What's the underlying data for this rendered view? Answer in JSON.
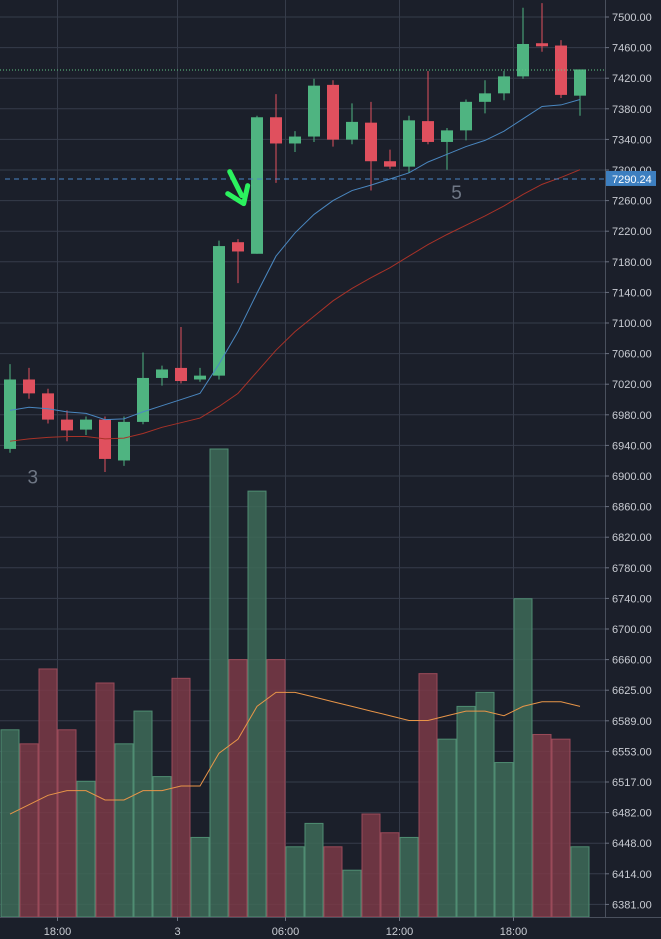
{
  "colors": {
    "background": "#1b1f2a",
    "grid": "#363c4a",
    "up": "#4fb481",
    "down": "#e0505e",
    "volume_up": "#3d6b58",
    "volume_down": "#7a3a47",
    "ema_fast": "#4a87c0",
    "ema_slow": "#a83228",
    "volume_ma": "#e89548",
    "current_price_line": "#62c987",
    "marker_line": "#4a86c5",
    "price_tag": "#3d7fc0",
    "arrow": "#2bf25e"
  },
  "chart_data": {
    "type": "candlestick",
    "y_axis_ticks": [
      "7500.00",
      "7460.00",
      "7420.00",
      "7380.00",
      "7340.00",
      "7300.00",
      "7260.00",
      "7220.00",
      "7180.00",
      "7140.00",
      "7100.00",
      "7060.00",
      "7020.00",
      "6980.00",
      "6940.00",
      "6900.00",
      "6860.00",
      "6820.00",
      "6780.00",
      "6740.00",
      "6700.00",
      "6660.00",
      "6625.00",
      "6589.00",
      "6553.00",
      "6517.00",
      "6482.00",
      "6448.00",
      "6414.00",
      "6381.00"
    ],
    "price_range": [
      6904,
      7515
    ],
    "x_ticks": [
      {
        "label": "18:00",
        "at_candle": 3
      },
      {
        "label": "3",
        "at_candle": 9
      },
      {
        "label": "06:00",
        "at_candle": 15
      },
      {
        "label": "12:00",
        "at_candle": 21
      },
      {
        "label": "18:00",
        "at_candle": 27
      }
    ],
    "candles": [
      {
        "o": 6940,
        "h": 7050,
        "l": 6935,
        "c": 7030
      },
      {
        "o": 7030,
        "h": 7045,
        "l": 7005,
        "c": 7012
      },
      {
        "o": 7012,
        "h": 7018,
        "l": 6973,
        "c": 6978
      },
      {
        "o": 6978,
        "h": 6990,
        "l": 6950,
        "c": 6964
      },
      {
        "o": 6965,
        "h": 6982,
        "l": 6958,
        "c": 6978
      },
      {
        "o": 6978,
        "h": 6982,
        "l": 6910,
        "c": 6927
      },
      {
        "o": 6925,
        "h": 6982,
        "l": 6918,
        "c": 6975
      },
      {
        "o": 6975,
        "h": 7065,
        "l": 6972,
        "c": 7032
      },
      {
        "o": 7032,
        "h": 7048,
        "l": 7022,
        "c": 7043
      },
      {
        "o": 7045,
        "h": 7098,
        "l": 7025,
        "c": 7028
      },
      {
        "o": 7030,
        "h": 7045,
        "l": 7027,
        "c": 7035
      },
      {
        "o": 7035,
        "h": 7210,
        "l": 7030,
        "c": 7203
      },
      {
        "o": 7208,
        "h": 7212,
        "l": 7155,
        "c": 7196
      },
      {
        "o": 7193,
        "h": 7372,
        "l": 7193,
        "c": 7370
      },
      {
        "o": 7370,
        "h": 7400,
        "l": 7285,
        "c": 7336
      },
      {
        "o": 7336,
        "h": 7352,
        "l": 7325,
        "c": 7345
      },
      {
        "o": 7345,
        "h": 7420,
        "l": 7338,
        "c": 7411
      },
      {
        "o": 7412,
        "h": 7418,
        "l": 7332,
        "c": 7341
      },
      {
        "o": 7341,
        "h": 7388,
        "l": 7335,
        "c": 7364
      },
      {
        "o": 7363,
        "h": 7390,
        "l": 7275,
        "c": 7313
      },
      {
        "o": 7313,
        "h": 7328,
        "l": 7303,
        "c": 7306
      },
      {
        "o": 7306,
        "h": 7372,
        "l": 7298,
        "c": 7366
      },
      {
        "o": 7365,
        "h": 7430,
        "l": 7335,
        "c": 7338
      },
      {
        "o": 7338,
        "h": 7356,
        "l": 7302,
        "c": 7353
      },
      {
        "o": 7353,
        "h": 7393,
        "l": 7340,
        "c": 7390
      },
      {
        "o": 7390,
        "h": 7418,
        "l": 7375,
        "c": 7401
      },
      {
        "o": 7401,
        "h": 7430,
        "l": 7392,
        "c": 7423
      },
      {
        "o": 7423,
        "h": 7512,
        "l": 7420,
        "c": 7465
      },
      {
        "o": 7466,
        "h": 7518,
        "l": 7455,
        "c": 7462
      },
      {
        "o": 7463,
        "h": 7470,
        "l": 7395,
        "c": 7399
      },
      {
        "o": 7398,
        "h": 7432,
        "l": 7372,
        "c": 7432
      }
    ],
    "volume": [
      0.4,
      0.37,
      0.53,
      0.4,
      0.29,
      0.5,
      0.37,
      0.44,
      0.3,
      0.51,
      0.17,
      1.0,
      0.55,
      0.91,
      0.55,
      0.15,
      0.2,
      0.15,
      0.1,
      0.22,
      0.18,
      0.17,
      0.52,
      0.38,
      0.45,
      0.48,
      0.33,
      0.68,
      0.39,
      0.38,
      0.15
    ],
    "volume_ma": [
      0.22,
      0.24,
      0.26,
      0.27,
      0.27,
      0.25,
      0.25,
      0.27,
      0.27,
      0.28,
      0.28,
      0.35,
      0.38,
      0.45,
      0.48,
      0.48,
      0.47,
      0.46,
      0.45,
      0.44,
      0.43,
      0.42,
      0.42,
      0.43,
      0.44,
      0.44,
      0.43,
      0.45,
      0.46,
      0.46,
      0.45
    ],
    "ema_fast": [
      6990,
      6994,
      6992,
      6988,
      6986,
      6978,
      6979,
      6988,
      6996,
      7004,
      7012,
      7050,
      7092,
      7142,
      7190,
      7220,
      7244,
      7262,
      7275,
      7282,
      7290,
      7298,
      7312,
      7322,
      7332,
      7340,
      7352,
      7368,
      7384,
      7386,
      7393
    ],
    "ema_slow": [
      6950,
      6953,
      6955,
      6956,
      6956,
      6953,
      6954,
      6960,
      6968,
      6974,
      6980,
      6995,
      7012,
      7040,
      7068,
      7092,
      7112,
      7132,
      7148,
      7162,
      7175,
      7190,
      7205,
      7218,
      7230,
      7242,
      7255,
      7270,
      7283,
      7292,
      7302
    ],
    "current_price": 7432,
    "marker_price": 7290,
    "marker_price_label": "7290.24",
    "wave_labels": [
      {
        "text": "3",
        "at_candle": 1.2,
        "price": 6895
      },
      {
        "text": "5",
        "at_candle": 23.5,
        "price": 7264
      }
    ],
    "arrow_at_candle": 12.3
  }
}
